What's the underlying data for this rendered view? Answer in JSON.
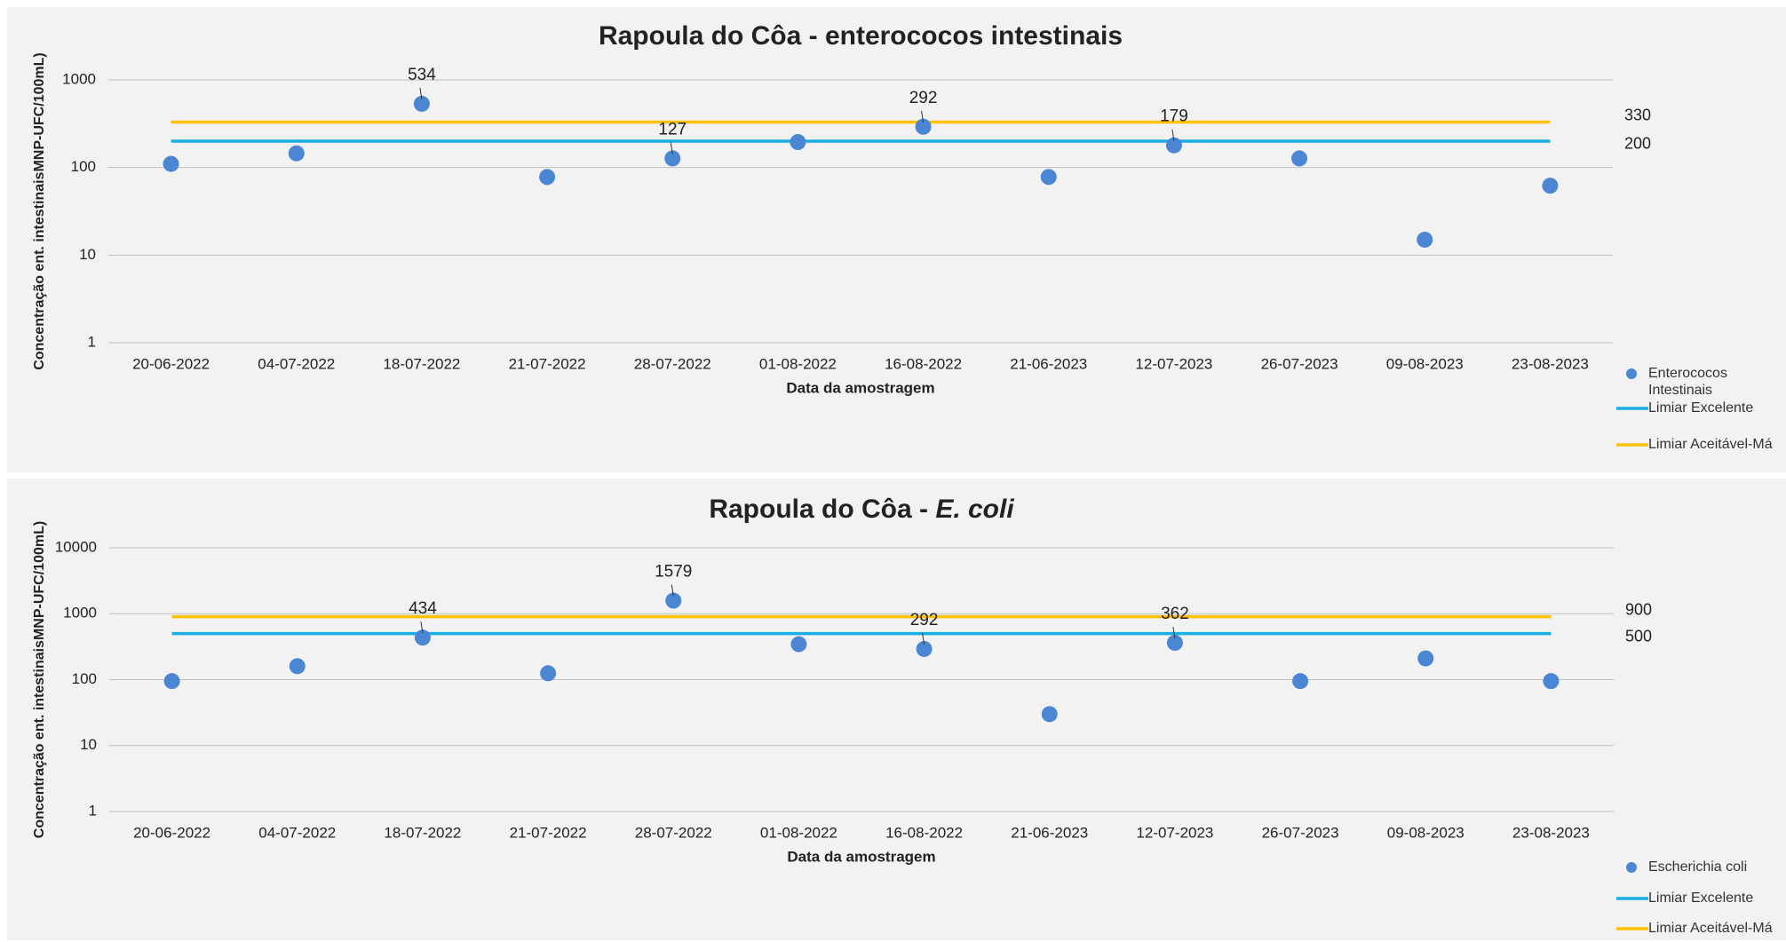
{
  "chart_data": [
    {
      "type": "scatter",
      "title": [
        "Rapoula do Côa - enterococos intestinais"
      ],
      "x_label": "Data da amostragem",
      "y_label": "Concentração ent. intestinaisMNP-UFC/100mL)",
      "categories": [
        "20-06-2022",
        "04-07-2022",
        "18-07-2022",
        "21-07-2022",
        "28-07-2022",
        "01-08-2022",
        "16-08-2022",
        "21-06-2023",
        "12-07-2023",
        "26-07-2023",
        "09-08-2023",
        "23-08-2023"
      ],
      "ylog": true,
      "ylim": [
        1,
        1000
      ],
      "yticks": [
        1,
        10,
        100,
        1000
      ],
      "grid": true,
      "series": [
        {
          "name": "Enterococos Intestinais",
          "color": "#4a86d4",
          "values": [
            110,
            145,
            534,
            78,
            127,
            195,
            292,
            78,
            179,
            127,
            15,
            62
          ],
          "labeled_points": [
            2,
            4,
            6,
            8
          ]
        },
        {
          "name": "Limiar Excelente",
          "color": "#1aaee5",
          "value": 200
        },
        {
          "name": "Limiar Aceitável-Má",
          "color": "#ffc000",
          "value": 330
        }
      ]
    },
    {
      "type": "scatter",
      "title": [
        "Rapoula do Côa - ",
        "E. coli"
      ],
      "x_label": "Data da amostragem",
      "y_label": "Concentração ent. intestinaisMNP-UFC/100mL)",
      "categories": [
        "20-06-2022",
        "04-07-2022",
        "18-07-2022",
        "21-07-2022",
        "28-07-2022",
        "01-08-2022",
        "16-08-2022",
        "21-06-2023",
        "12-07-2023",
        "26-07-2023",
        "09-08-2023",
        "23-08-2023"
      ],
      "ylog": true,
      "ylim": [
        1,
        10000
      ],
      "yticks": [
        1,
        10,
        100,
        1000,
        10000
      ],
      "grid": true,
      "series": [
        {
          "name": "Escherichia coli",
          "color": "#4a86d4",
          "values": [
            95,
            160,
            434,
            125,
            1579,
            345,
            292,
            30,
            362,
            95,
            210,
            95
          ],
          "labeled_points": [
            2,
            4,
            6,
            8
          ]
        },
        {
          "name": "Limiar Excelente",
          "color": "#1aaee5",
          "value": 500
        },
        {
          "name": "Limiar Aceitável-Má",
          "color": "#ffc000",
          "value": 900
        }
      ]
    }
  ]
}
